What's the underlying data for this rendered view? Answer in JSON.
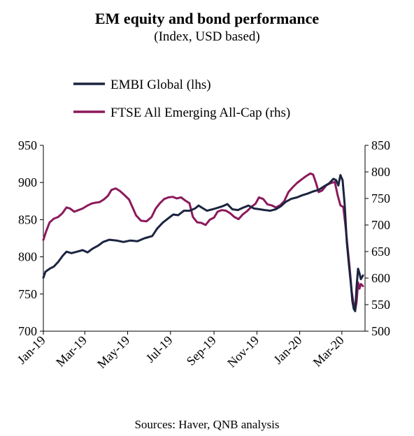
{
  "title": "EM equity and bond performance",
  "subtitle": "(Index, USD based)",
  "source": "Sources: Haver, QNB analysis",
  "chart_data": {
    "type": "line",
    "title": "EM equity and bond performance",
    "subtitle": "(Index, USD based)",
    "x_tick_labels": [
      "Jan-19",
      "Mar-19",
      "May-19",
      "Jul-19",
      "Sep-19",
      "Nov-19",
      "Jan-20",
      "Mar-20"
    ],
    "y_left": {
      "ylim": [
        700,
        950
      ],
      "ticks": [
        700,
        750,
        800,
        850,
        900,
        950
      ]
    },
    "y_right": {
      "ylim": [
        500,
        850
      ],
      "ticks": [
        500,
        550,
        600,
        650,
        700,
        750,
        800,
        850
      ]
    },
    "grid": false,
    "legend_position": "top-left",
    "series": [
      {
        "name": "EMBI Global (lhs)",
        "axis": "left",
        "color": "#1b2440",
        "points": [
          [
            "2019-01-01",
            772
          ],
          [
            "2019-01-04",
            780
          ],
          [
            "2019-01-10",
            784
          ],
          [
            "2019-01-16",
            787
          ],
          [
            "2019-01-22",
            793
          ],
          [
            "2019-01-29",
            802
          ],
          [
            "2019-02-03",
            807
          ],
          [
            "2019-02-10",
            805
          ],
          [
            "2019-02-18",
            807
          ],
          [
            "2019-02-26",
            809
          ],
          [
            "2019-03-05",
            806
          ],
          [
            "2019-03-12",
            811
          ],
          [
            "2019-03-20",
            815
          ],
          [
            "2019-03-27",
            820
          ],
          [
            "2019-04-05",
            823
          ],
          [
            "2019-04-15",
            822
          ],
          [
            "2019-04-25",
            820
          ],
          [
            "2019-05-05",
            822
          ],
          [
            "2019-05-15",
            821
          ],
          [
            "2019-05-25",
            825
          ],
          [
            "2019-06-05",
            828
          ],
          [
            "2019-06-12",
            838
          ],
          [
            "2019-06-20",
            846
          ],
          [
            "2019-06-28",
            852
          ],
          [
            "2019-07-05",
            857
          ],
          [
            "2019-07-12",
            856
          ],
          [
            "2019-07-20",
            862
          ],
          [
            "2019-07-28",
            862
          ],
          [
            "2019-08-05",
            865
          ],
          [
            "2019-08-10",
            869
          ],
          [
            "2019-08-15",
            866
          ],
          [
            "2019-08-22",
            862
          ],
          [
            "2019-08-30",
            864
          ],
          [
            "2019-09-06",
            866
          ],
          [
            "2019-09-13",
            868
          ],
          [
            "2019-09-20",
            871
          ],
          [
            "2019-09-27",
            864
          ],
          [
            "2019-10-05",
            863
          ],
          [
            "2019-10-12",
            866
          ],
          [
            "2019-10-20",
            869
          ],
          [
            "2019-10-28",
            865
          ],
          [
            "2019-11-05",
            864
          ],
          [
            "2019-11-12",
            863
          ],
          [
            "2019-11-20",
            862
          ],
          [
            "2019-11-28",
            864
          ],
          [
            "2019-12-05",
            868
          ],
          [
            "2019-12-12",
            874
          ],
          [
            "2019-12-20",
            878
          ],
          [
            "2019-12-28",
            880
          ],
          [
            "2020-01-05",
            883
          ],
          [
            "2020-01-12",
            885
          ],
          [
            "2020-01-20",
            888
          ],
          [
            "2020-01-28",
            890
          ],
          [
            "2020-02-05",
            895
          ],
          [
            "2020-02-12",
            899
          ],
          [
            "2020-02-18",
            905
          ],
          [
            "2020-02-22",
            903
          ],
          [
            "2020-02-25",
            896
          ],
          [
            "2020-02-28",
            910
          ],
          [
            "2020-03-02",
            903
          ],
          [
            "2020-03-05",
            870
          ],
          [
            "2020-03-08",
            820
          ],
          [
            "2020-03-11",
            790
          ],
          [
            "2020-03-14",
            762
          ],
          [
            "2020-03-16",
            740
          ],
          [
            "2020-03-18",
            730
          ],
          [
            "2020-03-20",
            727
          ],
          [
            "2020-03-22",
            760
          ],
          [
            "2020-03-24",
            784
          ],
          [
            "2020-03-26",
            778
          ],
          [
            "2020-03-28",
            770
          ],
          [
            "2020-03-31",
            775
          ]
        ]
      },
      {
        "name": "FTSE All Emerging All-Cap (rhs)",
        "axis": "right",
        "color": "#8b1a5c",
        "points": [
          [
            "2019-01-01",
            672
          ],
          [
            "2019-01-05",
            688
          ],
          [
            "2019-01-10",
            705
          ],
          [
            "2019-01-16",
            712
          ],
          [
            "2019-01-22",
            715
          ],
          [
            "2019-01-28",
            722
          ],
          [
            "2019-02-03",
            733
          ],
          [
            "2019-02-08",
            731
          ],
          [
            "2019-02-14",
            725
          ],
          [
            "2019-02-20",
            728
          ],
          [
            "2019-02-26",
            731
          ],
          [
            "2019-03-04",
            736
          ],
          [
            "2019-03-10",
            740
          ],
          [
            "2019-03-16",
            742
          ],
          [
            "2019-03-22",
            743
          ],
          [
            "2019-03-28",
            748
          ],
          [
            "2019-04-03",
            755
          ],
          [
            "2019-04-08",
            766
          ],
          [
            "2019-04-14",
            769
          ],
          [
            "2019-04-20",
            764
          ],
          [
            "2019-04-26",
            757
          ],
          [
            "2019-05-03",
            748
          ],
          [
            "2019-05-08",
            733
          ],
          [
            "2019-05-13",
            718
          ],
          [
            "2019-05-20",
            708
          ],
          [
            "2019-05-28",
            707
          ],
          [
            "2019-06-04",
            715
          ],
          [
            "2019-06-10",
            731
          ],
          [
            "2019-06-16",
            741
          ],
          [
            "2019-06-22",
            749
          ],
          [
            "2019-06-28",
            752
          ],
          [
            "2019-07-04",
            753
          ],
          [
            "2019-07-10",
            750
          ],
          [
            "2019-07-16",
            752
          ],
          [
            "2019-07-22",
            746
          ],
          [
            "2019-07-28",
            741
          ],
          [
            "2019-08-02",
            715
          ],
          [
            "2019-08-08",
            705
          ],
          [
            "2019-08-14",
            704
          ],
          [
            "2019-08-20",
            700
          ],
          [
            "2019-08-26",
            710
          ],
          [
            "2019-09-01",
            714
          ],
          [
            "2019-09-06",
            725
          ],
          [
            "2019-09-12",
            728
          ],
          [
            "2019-09-18",
            727
          ],
          [
            "2019-09-24",
            722
          ],
          [
            "2019-09-30",
            715
          ],
          [
            "2019-10-06",
            711
          ],
          [
            "2019-10-12",
            720
          ],
          [
            "2019-10-18",
            726
          ],
          [
            "2019-10-24",
            734
          ],
          [
            "2019-10-30",
            740
          ],
          [
            "2019-11-04",
            752
          ],
          [
            "2019-11-10",
            749
          ],
          [
            "2019-11-16",
            739
          ],
          [
            "2019-11-22",
            737
          ],
          [
            "2019-11-28",
            733
          ],
          [
            "2019-12-04",
            737
          ],
          [
            "2019-12-10",
            745
          ],
          [
            "2019-12-16",
            762
          ],
          [
            "2019-12-22",
            771
          ],
          [
            "2019-12-28",
            779
          ],
          [
            "2020-01-04",
            786
          ],
          [
            "2020-01-10",
            792
          ],
          [
            "2020-01-16",
            797
          ],
          [
            "2020-01-20",
            795
          ],
          [
            "2020-01-24",
            780
          ],
          [
            "2020-01-28",
            762
          ],
          [
            "2020-02-02",
            765
          ],
          [
            "2020-02-08",
            775
          ],
          [
            "2020-02-14",
            779
          ],
          [
            "2020-02-20",
            781
          ],
          [
            "2020-02-24",
            756
          ],
          [
            "2020-02-28",
            737
          ],
          [
            "2020-03-03",
            734
          ],
          [
            "2020-03-06",
            700
          ],
          [
            "2020-03-09",
            660
          ],
          [
            "2020-03-12",
            620
          ],
          [
            "2020-03-15",
            575
          ],
          [
            "2020-03-18",
            549
          ],
          [
            "2020-03-20",
            540
          ],
          [
            "2020-03-22",
            555
          ],
          [
            "2020-03-24",
            592
          ],
          [
            "2020-03-26",
            580
          ],
          [
            "2020-03-28",
            589
          ],
          [
            "2020-03-31",
            585
          ]
        ]
      }
    ]
  }
}
